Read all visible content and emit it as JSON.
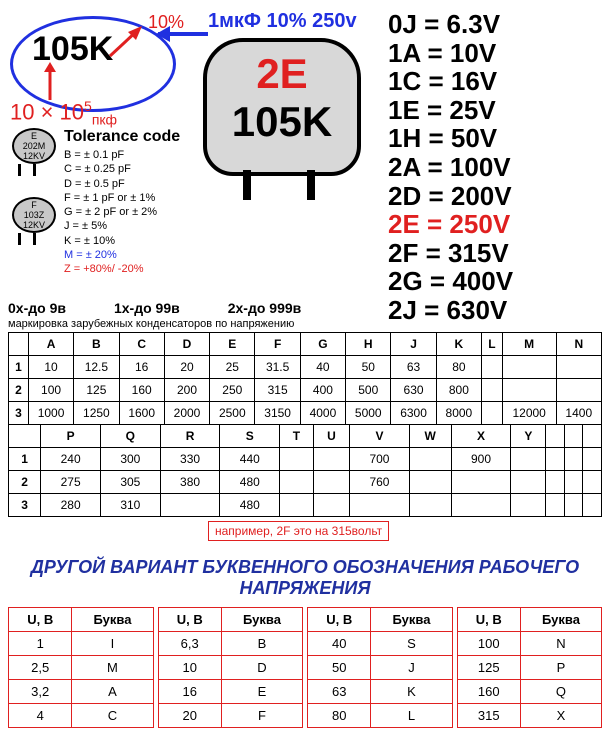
{
  "example": {
    "code": "105K",
    "tolerance_label": "10%",
    "formula_html": "10 × 10<sup>5</sup><sub>пкф</sub>",
    "blue_caption": "1мкФ 10% 250v"
  },
  "big_cap": {
    "line1": "2E",
    "line2": "105K",
    "line1_color": "#e02020",
    "line2_color": "#000000"
  },
  "voltage_codes": [
    {
      "code": "0J",
      "v": "6.3V",
      "hl": false
    },
    {
      "code": "1A",
      "v": "10V",
      "hl": false
    },
    {
      "code": "1C",
      "v": "16V",
      "hl": false
    },
    {
      "code": "1E",
      "v": "25V",
      "hl": false
    },
    {
      "code": "1H",
      "v": "50V",
      "hl": false
    },
    {
      "code": "2A",
      "v": "100V",
      "hl": false
    },
    {
      "code": "2D",
      "v": "200V",
      "hl": false
    },
    {
      "code": "2E",
      "v": "250V",
      "hl": true
    },
    {
      "code": "2F",
      "v": "315V",
      "hl": false
    },
    {
      "code": "2G",
      "v": "400V",
      "hl": false
    },
    {
      "code": "2J",
      "v": "630V",
      "hl": false
    }
  ],
  "tolerance": {
    "title": "Tolerance code",
    "cap1": "E\n202M\n12KV",
    "cap2": "F\n103Z\n12KV",
    "codes": [
      {
        "t": "B = ± 0.1 pF",
        "c": "#000"
      },
      {
        "t": "C = ± 0.25 pF",
        "c": "#000"
      },
      {
        "t": "D = ± 0.5 pF",
        "c": "#000"
      },
      {
        "t": "F = ± 1 pF or ± 1%",
        "c": "#000"
      },
      {
        "t": "G = ± 2 pF or ± 2%",
        "c": "#000"
      },
      {
        "t": "J = ± 5%",
        "c": "#000"
      },
      {
        "t": "K = ± 10%",
        "c": "#000"
      },
      {
        "t": "M = ± 20%",
        "c": "#2030e0"
      },
      {
        "t": "Z = +80%/ -20%",
        "c": "#e02020"
      }
    ]
  },
  "ranges": {
    "r1": "0х-до 9в",
    "r2": "1х-до 99в",
    "r3": "2х-до 999в",
    "sub": "маркировка зарубежных конденсаторов по напряжению"
  },
  "table1": {
    "head": [
      "",
      "A",
      "B",
      "C",
      "D",
      "E",
      "F",
      "G",
      "H",
      "J",
      "K",
      "L",
      "M",
      "N"
    ],
    "rows": [
      [
        "1",
        "10",
        "12.5",
        "16",
        "20",
        "25",
        "31.5",
        "40",
        "50",
        "63",
        "80",
        "",
        "",
        ""
      ],
      [
        "2",
        "100",
        "125",
        "160",
        "200",
        "250",
        "315",
        "400",
        "500",
        "630",
        "800",
        "",
        "",
        ""
      ],
      [
        "3",
        "1000",
        "1250",
        "1600",
        "2000",
        "2500",
        "3150",
        "4000",
        "5000",
        "6300",
        "8000",
        "",
        "12000",
        "1400"
      ]
    ]
  },
  "table2": {
    "head": [
      "",
      "P",
      "Q",
      "R",
      "S",
      "T",
      "U",
      "V",
      "W",
      "X",
      "Y",
      "",
      "",
      ""
    ],
    "rows": [
      [
        "1",
        "240",
        "300",
        "330",
        "440",
        "",
        "",
        "700",
        "",
        "900",
        "",
        "",
        "",
        ""
      ],
      [
        "2",
        "275",
        "305",
        "380",
        "480",
        "",
        "",
        "760",
        "",
        "",
        "",
        "",
        "",
        ""
      ],
      [
        "3",
        "280",
        "310",
        "",
        "480",
        "",
        "",
        "",
        "",
        "",
        "",
        "",
        "",
        ""
      ]
    ]
  },
  "note_2f": "например, 2F это на 315вольт",
  "alt_heading": "ДРУГОЙ ВАРИАНТ БУКВЕННОГО ОБОЗНАЧЕНИЯ РАБОЧЕГО НАПРЯЖЕНИЯ",
  "alt_table": {
    "head": [
      "U, B",
      "Буква"
    ],
    "groups": [
      [
        [
          "1",
          "I"
        ],
        [
          "2,5",
          "M"
        ],
        [
          "3,2",
          "A"
        ],
        [
          "4",
          "C"
        ]
      ],
      [
        [
          "6,3",
          "B"
        ],
        [
          "10",
          "D"
        ],
        [
          "16",
          "E"
        ],
        [
          "20",
          "F"
        ]
      ],
      [
        [
          "40",
          "S"
        ],
        [
          "50",
          "J"
        ],
        [
          "63",
          "K"
        ],
        [
          "80",
          "L"
        ]
      ],
      [
        [
          "100",
          "N"
        ],
        [
          "125",
          "P"
        ],
        [
          "160",
          "Q"
        ],
        [
          "315",
          "X"
        ]
      ]
    ]
  },
  "colors": {
    "blue": "#2030e0",
    "red": "#e02020",
    "capbg": "#d8d8d8"
  }
}
